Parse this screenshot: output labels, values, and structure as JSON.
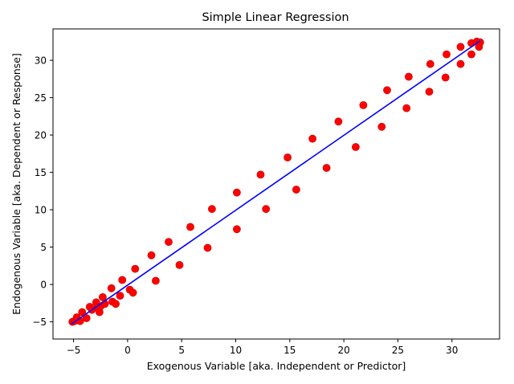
{
  "chart_data": {
    "type": "scatter",
    "title": "Simple Linear Regression",
    "xlabel": "Exogenous Variable [aka. Independent or Predictor]",
    "ylabel": "Endogenous Variable [aka. Dependent or Response]",
    "xlim": [
      -6.9,
      34.4
    ],
    "ylim": [
      -7.3,
      34.2
    ],
    "xticks": [
      -5,
      0,
      5,
      10,
      15,
      20,
      25,
      30
    ],
    "yticks": [
      -5,
      0,
      5,
      10,
      15,
      20,
      25,
      30
    ],
    "grid": false,
    "colors": {
      "points": "#ff0000",
      "points_edge": "#cc0000",
      "line": "#0000ff",
      "axes": "#000000"
    },
    "series": [
      {
        "kind": "scatter",
        "points": [
          [
            -5.1,
            -5.0
          ],
          [
            -4.9,
            -4.9
          ],
          [
            -4.7,
            -4.4
          ],
          [
            -4.4,
            -4.9
          ],
          [
            -4.2,
            -3.7
          ],
          [
            -3.8,
            -4.5
          ],
          [
            -3.5,
            -3.0
          ],
          [
            -3.3,
            -3.4
          ],
          [
            -2.9,
            -2.4
          ],
          [
            -2.8,
            -3.0
          ],
          [
            -2.6,
            -3.7
          ],
          [
            -2.5,
            -2.9
          ],
          [
            -2.3,
            -1.7
          ],
          [
            -2.1,
            -2.6
          ],
          [
            -1.5,
            -0.5
          ],
          [
            -1.4,
            -2.3
          ],
          [
            -1.1,
            -2.6
          ],
          [
            -0.7,
            -1.5
          ],
          [
            -0.5,
            0.6
          ],
          [
            0.2,
            -0.7
          ],
          [
            0.5,
            -1.1
          ],
          [
            0.7,
            2.1
          ],
          [
            2.2,
            3.9
          ],
          [
            2.6,
            0.5
          ],
          [
            3.8,
            5.7
          ],
          [
            4.8,
            2.6
          ],
          [
            5.8,
            7.7
          ],
          [
            7.4,
            4.9
          ],
          [
            7.8,
            10.1
          ],
          [
            10.1,
            12.3
          ],
          [
            10.1,
            7.4
          ],
          [
            12.3,
            14.7
          ],
          [
            12.8,
            10.1
          ],
          [
            14.8,
            17.0
          ],
          [
            15.6,
            12.7
          ],
          [
            17.1,
            19.5
          ],
          [
            18.4,
            15.6
          ],
          [
            19.5,
            21.8
          ],
          [
            21.1,
            18.4
          ],
          [
            21.8,
            24.0
          ],
          [
            23.5,
            21.1
          ],
          [
            24.0,
            26.0
          ],
          [
            25.8,
            23.6
          ],
          [
            26.0,
            27.8
          ],
          [
            27.9,
            25.8
          ],
          [
            28.0,
            29.5
          ],
          [
            29.4,
            27.7
          ],
          [
            29.5,
            30.8
          ],
          [
            30.8,
            29.5
          ],
          [
            30.8,
            31.8
          ],
          [
            31.8,
            30.8
          ],
          [
            31.8,
            32.3
          ],
          [
            32.3,
            32.5
          ],
          [
            32.5,
            31.8
          ],
          [
            32.6,
            32.4
          ]
        ]
      },
      {
        "kind": "line",
        "points": [
          [
            -5.2,
            -5.3
          ],
          [
            32.6,
            32.6
          ]
        ]
      }
    ]
  }
}
